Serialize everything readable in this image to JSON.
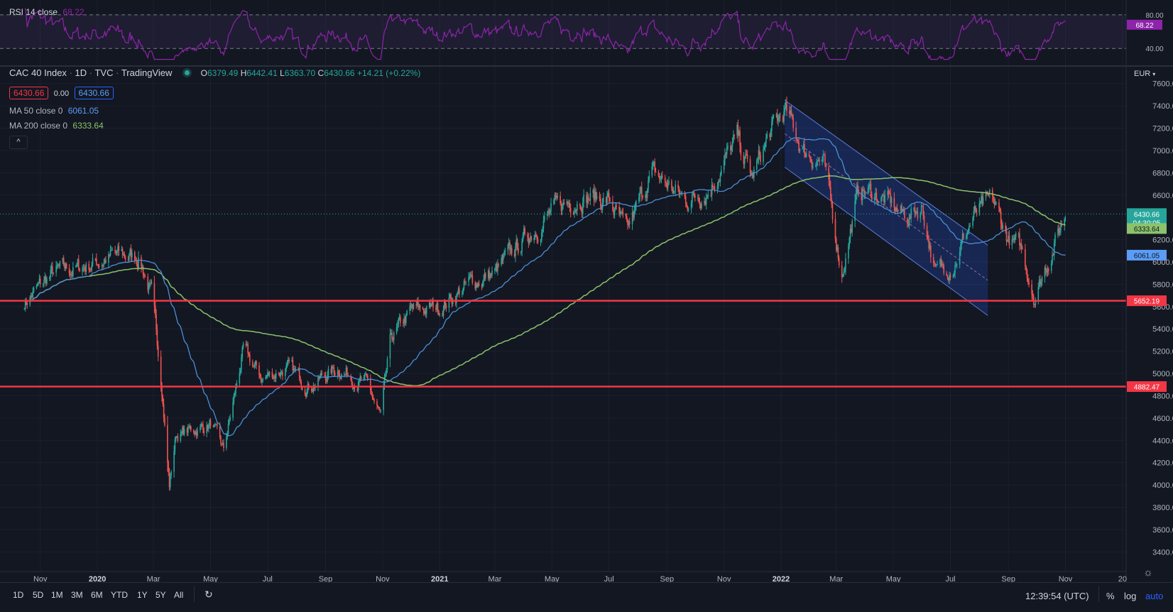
{
  "colors": {
    "background": "#131722",
    "grid": "#1c2030",
    "text": "#b2b5be",
    "candle_up": "#26a69a",
    "candle_down": "#ef5350",
    "ma50": "#4a8fd4",
    "ma200": "#8bc26b",
    "rsi": "#8e24aa",
    "hline": "#f23645",
    "channel": "#2a3d8f",
    "last_price": "#26a69a"
  },
  "legend": {
    "symbol": "CAC 40 Index",
    "interval": "1D",
    "source": "TVC",
    "vendor": "TradingView",
    "o_label": "O",
    "o": "6379.49",
    "h_label": "H",
    "h": "6442.41",
    "l_label": "L",
    "l": "6363.70",
    "c_label": "C",
    "c": "6430.66",
    "change": "+14.21 (+0.22%)",
    "bid": "6430.66",
    "spread": "0.00",
    "ask": "6430.66",
    "ma50_label": "MA 50 close 0",
    "ma50_value": "6061.05",
    "ma200_label": "MA 200 close 0",
    "ma200_value": "6333.64",
    "collapse_glyph": "^"
  },
  "rsi_pane": {
    "label": "RSI 14 close",
    "value": "68.22",
    "upper_level": "80.00",
    "lower_level": "40.00"
  },
  "price_axis": {
    "currency": "EUR",
    "ticks": [
      "7600.00",
      "7400.00",
      "7200.00",
      "7000.00",
      "6800.00",
      "6600.00",
      "6200.00",
      "6000.00",
      "5800.00",
      "5600.00",
      "5400.00",
      "5200.00",
      "5000.00",
      "4800.00",
      "4600.00",
      "4400.00",
      "4200.00",
      "4000.00",
      "3800.00",
      "3600.00",
      "3400.00"
    ],
    "labels": {
      "last_price": "6430.66",
      "countdown": "04:30:05",
      "ma200": "6333.64",
      "ma50": "6061.05",
      "support_upper": "5652.19",
      "support_lower": "4882.47"
    }
  },
  "time_axis": {
    "labels": [
      "Nov",
      "2020",
      "Mar",
      "May",
      "Jul",
      "Sep",
      "Nov",
      "2021",
      "Mar",
      "May",
      "Jul",
      "Sep",
      "Nov",
      "2022",
      "Mar",
      "May",
      "Jul",
      "Sep",
      "Nov",
      "20"
    ]
  },
  "bottom_bar": {
    "timeframes": [
      "1D",
      "5D",
      "1M",
      "3M",
      "6M",
      "YTD",
      "1Y",
      "5Y",
      "All"
    ],
    "clock": "12:39:54 (UTC)",
    "percent": "%",
    "log": "log",
    "auto": "auto"
  },
  "chart_data": {
    "type": "candlestick",
    "title": "CAC 40 Index",
    "y_scale": "linear",
    "ylim": [
      3300,
      7700
    ],
    "grid": true,
    "series": [
      {
        "name": "CAC 40 Index",
        "x": [
          "2019-10-15",
          "2019-11-15",
          "2019-12-15",
          "2020-01-15",
          "2020-02-15",
          "2020-02-28",
          "2020-03-10",
          "2020-03-18",
          "2020-03-25",
          "2020-04-15",
          "2020-05-01",
          "2020-05-15",
          "2020-06-05",
          "2020-06-25",
          "2020-07-20",
          "2020-08-15",
          "2020-09-15",
          "2020-10-15",
          "2020-10-30",
          "2020-11-10",
          "2020-12-01",
          "2021-01-01",
          "2021-02-01",
          "2021-03-01",
          "2021-04-01",
          "2021-05-01",
          "2021-06-01",
          "2021-07-01",
          "2021-07-20",
          "2021-08-15",
          "2021-09-01",
          "2021-09-20",
          "2021-10-15",
          "2021-11-15",
          "2021-12-01",
          "2021-12-20",
          "2022-01-05",
          "2022-01-25",
          "2022-02-15",
          "2022-03-07",
          "2022-03-25",
          "2022-04-15",
          "2022-05-15",
          "2022-06-01",
          "2022-06-15",
          "2022-07-05",
          "2022-07-25",
          "2022-08-15",
          "2022-09-01",
          "2022-09-15",
          "2022-09-29",
          "2022-10-15",
          "2022-11-01"
        ],
        "close": [
          5640,
          5900,
          5950,
          6050,
          6050,
          5700,
          4900,
          4000,
          4450,
          4500,
          4550,
          4300,
          5200,
          4950,
          5050,
          4900,
          5050,
          4900,
          4600,
          5300,
          5550,
          5600,
          5800,
          5900,
          6200,
          6450,
          6600,
          6550,
          6250,
          6800,
          6700,
          6550,
          6650,
          7100,
          6750,
          7150,
          7350,
          7000,
          6900,
          5900,
          6650,
          6600,
          6400,
          6500,
          5900,
          6000,
          6400,
          6550,
          6200,
          6100,
          5700,
          6050,
          6430
        ]
      }
    ],
    "moving_averages": [
      {
        "name": "MA 50 close 0",
        "current": 6061.05
      },
      {
        "name": "MA 200 close 0",
        "current": 6333.64
      }
    ],
    "horizontal_lines": [
      5652.19,
      4882.47
    ],
    "rsi": {
      "period": 14,
      "current": 68.22,
      "levels": [
        80,
        40
      ],
      "range": [
        25,
        90
      ]
    },
    "x_tick_labels": [
      "Nov",
      "2020",
      "Mar",
      "May",
      "Jul",
      "Sep",
      "Nov",
      "2021",
      "Mar",
      "May",
      "Jul",
      "Sep",
      "Nov",
      "2022",
      "Mar",
      "May",
      "Jul",
      "Sep",
      "Nov",
      "20"
    ],
    "y_tick_labels": [
      "7600.00",
      "7400.00",
      "7200.00",
      "7000.00",
      "6800.00",
      "6600.00",
      "6200.00",
      "6000.00",
      "5800.00",
      "5600.00",
      "5400.00",
      "5200.00",
      "5000.00",
      "4800.00",
      "4600.00",
      "4400.00",
      "4200.00",
      "4000.00",
      "3800.00",
      "3600.00",
      "3400.00"
    ]
  }
}
